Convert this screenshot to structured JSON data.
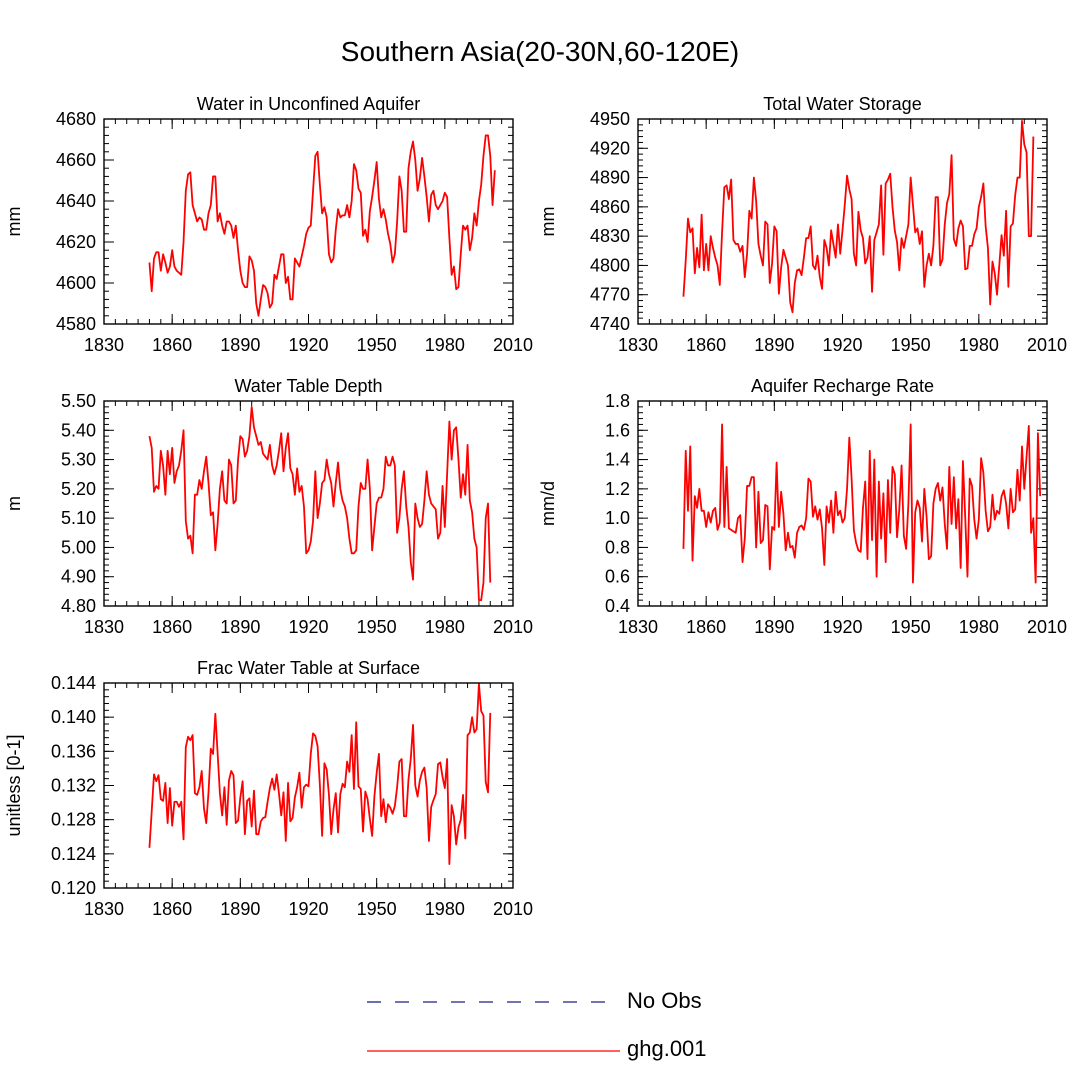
{
  "figure": {
    "title": "Southern Asia(20-30N,60-120E)"
  },
  "legend": {
    "items": [
      {
        "label": "No Obs",
        "color": "#1a237e",
        "style": "dashed"
      },
      {
        "label": "ghg.001",
        "color": "#ff0000",
        "style": "solid"
      }
    ]
  },
  "chart_data": [
    {
      "type": "line",
      "title": "Water in Unconfined Aquifer",
      "ylabel": "mm",
      "xlim": [
        1830,
        2010
      ],
      "xticks": [
        1830,
        1860,
        1890,
        1920,
        1950,
        1980,
        2010
      ],
      "ylim": [
        4580,
        4680
      ],
      "yticks": [
        4580,
        4600,
        4620,
        4640,
        4660,
        4680
      ],
      "ytick_labels": [
        "4580",
        "4600",
        "4620",
        "4640",
        "4660",
        "4680"
      ],
      "series": [
        {
          "name": "ghg.001",
          "x_start": 1850,
          "values": [
            4610,
            4596,
            4612,
            4615,
            4615,
            4606,
            4614,
            4610,
            4605,
            4608,
            4616,
            4608,
            4606,
            4605,
            4604,
            4620,
            4645,
            4653,
            4654,
            4638,
            4634,
            4630,
            4632,
            4631,
            4626,
            4626,
            4634,
            4638,
            4652,
            4652,
            4630,
            4634,
            4628,
            4624,
            4630,
            4630,
            4628,
            4622,
            4628,
            4616,
            4606,
            4600,
            4598,
            4598,
            4613,
            4611,
            4606,
            4590,
            4584,
            4592,
            4599,
            4598,
            4595,
            4588,
            4590,
            4604,
            4602,
            4608,
            4614,
            4614,
            4600,
            4603,
            4592,
            4592,
            4612,
            4610,
            4608,
            4613,
            4618,
            4624,
            4627,
            4628,
            4645,
            4662,
            4664,
            4648,
            4634,
            4637,
            4632,
            4614,
            4610,
            4612,
            4626,
            4636,
            4632,
            4633,
            4633,
            4638,
            4632,
            4640,
            4658,
            4655,
            4646,
            4644,
            4623,
            4626,
            4620,
            4635,
            4642,
            4650,
            4659,
            4641,
            4632,
            4636,
            4631,
            4624,
            4619,
            4610,
            4614,
            4630,
            4652,
            4645,
            4625,
            4625,
            4656,
            4664,
            4669,
            4660,
            4645,
            4651,
            4661,
            4652,
            4642,
            4630,
            4643,
            4645,
            4638,
            4636,
            4638,
            4640,
            4644,
            4642,
            4622,
            4604,
            4608,
            4597,
            4598,
            4614,
            4628,
            4626,
            4628,
            4616,
            4622,
            4634,
            4628,
            4640,
            4648,
            4662,
            4672,
            4672,
            4662,
            4638,
            4655
          ]
        }
      ]
    },
    {
      "type": "line",
      "title": "Total Water Storage",
      "ylabel": "mm",
      "xlim": [
        1830,
        2010
      ],
      "xticks": [
        1830,
        1860,
        1890,
        1920,
        1950,
        1980,
        2010
      ],
      "ylim": [
        4740,
        4950
      ],
      "yticks": [
        4740,
        4770,
        4800,
        4830,
        4860,
        4890,
        4920,
        4950
      ],
      "ytick_labels": [
        "4740",
        "4770",
        "4800",
        "4830",
        "4860",
        "4890",
        "4920",
        "4950"
      ],
      "series": [
        {
          "name": "ghg.001",
          "x_start": 1850,
          "values": [
            4768,
            4805,
            4848,
            4834,
            4838,
            4792,
            4818,
            4798,
            4852,
            4795,
            4822,
            4795,
            4830,
            4818,
            4808,
            4800,
            4780,
            4834,
            4880,
            4882,
            4868,
            4888,
            4826,
            4822,
            4822,
            4814,
            4820,
            4788,
            4812,
            4856,
            4848,
            4890,
            4866,
            4822,
            4810,
            4800,
            4845,
            4842,
            4782,
            4802,
            4840,
            4835,
            4771,
            4798,
            4816,
            4808,
            4800,
            4762,
            4752,
            4782,
            4795,
            4796,
            4790,
            4808,
            4828,
            4828,
            4840,
            4800,
            4796,
            4810,
            4788,
            4776,
            4826,
            4818,
            4800,
            4836,
            4822,
            4808,
            4842,
            4812,
            4836,
            4862,
            4892,
            4878,
            4868,
            4812,
            4800,
            4855,
            4836,
            4828,
            4802,
            4808,
            4830,
            4773,
            4826,
            4834,
            4842,
            4882,
            4811,
            4884,
            4888,
            4894,
            4860,
            4836,
            4824,
            4795,
            4828,
            4818,
            4830,
            4842,
            4890,
            4862,
            4834,
            4838,
            4822,
            4835,
            4778,
            4800,
            4812,
            4800,
            4820,
            4870,
            4870,
            4800,
            4806,
            4842,
            4864,
            4873,
            4913,
            4827,
            4820,
            4838,
            4846,
            4840,
            4796,
            4797,
            4820,
            4820,
            4832,
            4838,
            4860,
            4870,
            4884,
            4840,
            4818,
            4760,
            4804,
            4792,
            4770,
            4800,
            4831,
            4810,
            4856,
            4778,
            4840,
            4843,
            4872,
            4890,
            4890,
            4948,
            4924,
            4916,
            4830,
            4830,
            4932
          ]
        }
      ]
    },
    {
      "type": "line",
      "title": "Water Table Depth",
      "ylabel": "m",
      "xlim": [
        1830,
        2010
      ],
      "xticks": [
        1830,
        1860,
        1890,
        1920,
        1950,
        1980,
        2010
      ],
      "ylim": [
        4.8,
        5.5
      ],
      "yticks": [
        4.8,
        4.9,
        5.0,
        5.1,
        5.2,
        5.3,
        5.4,
        5.5
      ],
      "ytick_labels": [
        "4.80",
        "4.90",
        "5.00",
        "5.10",
        "5.20",
        "5.30",
        "5.40",
        "5.50"
      ],
      "series": [
        {
          "name": "ghg.001",
          "x_start": 1850,
          "values": [
            5.38,
            5.34,
            5.19,
            5.21,
            5.2,
            5.33,
            5.28,
            5.18,
            5.33,
            5.25,
            5.34,
            5.22,
            5.26,
            5.28,
            5.33,
            5.4,
            5.09,
            5.03,
            5.04,
            4.98,
            5.18,
            5.18,
            5.23,
            5.2,
            5.26,
            5.31,
            5.22,
            5.11,
            5.12,
            4.99,
            5.08,
            5.2,
            5.26,
            5.16,
            5.15,
            5.3,
            5.28,
            5.15,
            5.16,
            5.3,
            5.38,
            5.37,
            5.31,
            5.33,
            5.38,
            5.48,
            5.41,
            5.38,
            5.35,
            5.36,
            5.32,
            5.31,
            5.3,
            5.35,
            5.28,
            5.25,
            5.28,
            5.33,
            5.39,
            5.26,
            5.34,
            5.39,
            5.27,
            5.25,
            5.18,
            5.27,
            5.19,
            5.21,
            5.14,
            4.98,
            4.99,
            5.02,
            5.09,
            5.26,
            5.1,
            5.15,
            5.22,
            5.23,
            5.3,
            5.25,
            5.22,
            5.14,
            5.22,
            5.29,
            5.2,
            5.16,
            5.14,
            5.1,
            5.03,
            4.98,
            4.98,
            4.99,
            5.14,
            5.22,
            5.2,
            5.2,
            5.3,
            5.2,
            4.99,
            5.07,
            5.15,
            5.17,
            5.17,
            5.2,
            5.31,
            5.28,
            5.28,
            5.31,
            5.28,
            5.05,
            5.1,
            5.2,
            5.26,
            5.14,
            5.07,
            4.95,
            4.89,
            5.15,
            5.1,
            5.07,
            5.08,
            5.16,
            5.26,
            5.18,
            5.15,
            5.14,
            5.13,
            5.03,
            5.05,
            5.21,
            5.07,
            5.25,
            5.43,
            5.3,
            5.4,
            5.41,
            5.3,
            5.17,
            5.25,
            5.18,
            5.35,
            5.16,
            5.12,
            5.03,
            5.0,
            4.82,
            4.82,
            4.88,
            5.1,
            5.15,
            4.88
          ]
        }
      ]
    },
    {
      "type": "line",
      "title": "Aquifer Recharge Rate",
      "ylabel": "mm/d",
      "xlim": [
        1830,
        2010
      ],
      "xticks": [
        1830,
        1860,
        1890,
        1920,
        1950,
        1980,
        2010
      ],
      "ylim": [
        0.4,
        1.8
      ],
      "yticks": [
        0.4,
        0.6,
        0.8,
        1.0,
        1.2,
        1.4,
        1.6,
        1.8
      ],
      "ytick_labels": [
        "0.4",
        "0.6",
        "0.8",
        "1.0",
        "1.2",
        "1.4",
        "1.6",
        "1.8"
      ],
      "series": [
        {
          "name": "ghg.001",
          "x_start": 1850,
          "values": [
            0.79,
            1.46,
            1.05,
            1.49,
            0.71,
            1.15,
            1.07,
            1.2,
            1.05,
            1.05,
            0.94,
            1.04,
            0.97,
            1.05,
            1.07,
            0.92,
            0.97,
            1.64,
            0.94,
            1.35,
            0.93,
            0.92,
            0.91,
            0.9,
            1.0,
            1.02,
            0.7,
            0.86,
            1.22,
            1.22,
            1.28,
            1.28,
            0.8,
            1.18,
            0.83,
            0.85,
            1.09,
            1.08,
            0.65,
            0.94,
            0.92,
            1.38,
            0.94,
            1.18,
            1.03,
            0.78,
            0.9,
            0.8,
            0.81,
            0.73,
            0.9,
            0.94,
            0.95,
            0.92,
            1.0,
            1.27,
            1.25,
            1.01,
            1.08,
            0.99,
            1.06,
            0.93,
            0.68,
            1.08,
            0.97,
            1.12,
            0.9,
            1.18,
            1.02,
            1.05,
            0.97,
            1.0,
            1.2,
            1.55,
            1.27,
            0.92,
            0.83,
            0.78,
            0.77,
            1.07,
            1.25,
            0.72,
            1.46,
            0.85,
            1.4,
            0.6,
            1.25,
            0.86,
            1.17,
            0.7,
            1.26,
            0.9,
            1.35,
            1.3,
            0.87,
            1.06,
            1.36,
            0.88,
            0.79,
            1.1,
            1.64,
            0.56,
            1.04,
            1.12,
            1.07,
            0.84,
            1.2,
            1.01,
            0.72,
            0.74,
            1.1,
            1.2,
            1.24,
            1.12,
            1.21,
            0.96,
            0.79,
            1.35,
            0.96,
            1.28,
            0.93,
            1.13,
            0.66,
            1.39,
            1.01,
            0.6,
            1.27,
            1.22,
            0.99,
            0.86,
            0.99,
            1.41,
            1.31,
            1.05,
            0.91,
            0.94,
            1.16,
            0.99,
            1.05,
            1.03,
            1.15,
            1.19,
            1.1,
            0.93,
            1.2,
            1.04,
            1.06,
            1.33,
            1.12,
            1.49,
            1.2,
            1.42,
            1.63,
            0.9,
            1.0,
            0.56,
            1.58,
            1.15
          ]
        }
      ]
    },
    {
      "type": "line",
      "title": "Frac Water Table at Surface",
      "ylabel": "unitless [0-1]",
      "xlim": [
        1830,
        2010
      ],
      "xticks": [
        1830,
        1860,
        1890,
        1920,
        1950,
        1980,
        2010
      ],
      "ylim": [
        0.12,
        0.144
      ],
      "yticks": [
        0.12,
        0.124,
        0.128,
        0.132,
        0.136,
        0.14,
        0.144
      ],
      "ytick_labels": [
        "0.120",
        "0.124",
        "0.128",
        "0.132",
        "0.136",
        "0.140",
        "0.144"
      ],
      "series": [
        {
          "name": "ghg.001",
          "x_start": 1850,
          "values": [
            0.1247,
            0.129,
            0.1333,
            0.1325,
            0.1332,
            0.1304,
            0.1302,
            0.1323,
            0.1276,
            0.1317,
            0.1273,
            0.1301,
            0.1301,
            0.1295,
            0.1301,
            0.1257,
            0.1365,
            0.1377,
            0.1373,
            0.1379,
            0.1311,
            0.1309,
            0.1318,
            0.1337,
            0.1293,
            0.1276,
            0.1312,
            0.1363,
            0.1357,
            0.1404,
            0.1358,
            0.1311,
            0.1285,
            0.1318,
            0.1274,
            0.1326,
            0.1337,
            0.1332,
            0.1276,
            0.1279,
            0.1306,
            0.1325,
            0.1263,
            0.1302,
            0.1305,
            0.1272,
            0.1314,
            0.1263,
            0.1263,
            0.1278,
            0.1282,
            0.1283,
            0.1301,
            0.1317,
            0.1328,
            0.1315,
            0.1333,
            0.1311,
            0.1285,
            0.1312,
            0.1255,
            0.1323,
            0.1278,
            0.1282,
            0.1306,
            0.1318,
            0.1335,
            0.1294,
            0.1318,
            0.1321,
            0.1319,
            0.1357,
            0.1381,
            0.1378,
            0.1366,
            0.1321,
            0.1261,
            0.1346,
            0.1339,
            0.1309,
            0.1263,
            0.1292,
            0.1311,
            0.1265,
            0.131,
            0.1322,
            0.1318,
            0.1348,
            0.1336,
            0.1379,
            0.1316,
            0.1394,
            0.1319,
            0.1316,
            0.1266,
            0.1313,
            0.1304,
            0.1281,
            0.1261,
            0.1307,
            0.1335,
            0.1357,
            0.1284,
            0.1304,
            0.1277,
            0.1298,
            0.1294,
            0.1287,
            0.1296,
            0.1318,
            0.1348,
            0.1351,
            0.1284,
            0.1284,
            0.1327,
            0.1351,
            0.1391,
            0.132,
            0.1307,
            0.1326,
            0.1336,
            0.1341,
            0.1317,
            0.1255,
            0.1295,
            0.1303,
            0.131,
            0.1345,
            0.1347,
            0.133,
            0.1317,
            0.1351,
            0.1228,
            0.1297,
            0.1284,
            0.1251,
            0.1271,
            0.128,
            0.1309,
            0.1258,
            0.1379,
            0.1382,
            0.14,
            0.1382,
            0.1386,
            0.1439,
            0.1407,
            0.1402,
            0.1324,
            0.1312,
            0.1405
          ]
        }
      ]
    }
  ]
}
